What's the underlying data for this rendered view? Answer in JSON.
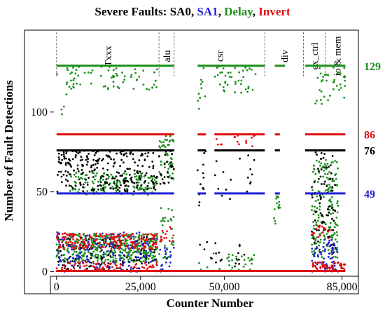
{
  "chart_data": {
    "type": "scatter",
    "title_parts": [
      {
        "text": "Severe Faults: ",
        "color": "#000000"
      },
      {
        "text": "SA0",
        "color": "#000000"
      },
      {
        "text": ", ",
        "color": "#000000"
      },
      {
        "text": "SA1",
        "color": "#1f1fd6"
      },
      {
        "text": ", ",
        "color": "#000000"
      },
      {
        "text": "Delay",
        "color": "#1a8f1a"
      },
      {
        "text": ", ",
        "color": "#000000"
      },
      {
        "text": "Invert",
        "color": "#e01010"
      }
    ],
    "xlabel": "Counter Number",
    "ylabel": "Number of Fault Detections",
    "xlim": [
      -1000,
      88000
    ],
    "ylim": [
      -2,
      150
    ],
    "xticks": [
      {
        "value": 0,
        "label": "0"
      },
      {
        "value": 25000,
        "label": "25,000"
      },
      {
        "value": 50000,
        "label": "50,000"
      },
      {
        "value": 85000,
        "label": "85,000"
      }
    ],
    "yticks": [
      {
        "value": 0,
        "label": "0"
      },
      {
        "value": 50,
        "label": "50"
      },
      {
        "value": 100,
        "label": "100"
      }
    ],
    "series": [
      {
        "name": "SA0",
        "color": "#000000",
        "level": 76
      },
      {
        "name": "SA1",
        "color": "#1f1fd6",
        "level": 49
      },
      {
        "name": "Delay",
        "color": "#1a8f1a",
        "level": 129
      },
      {
        "name": "Invert",
        "color": "#e01010",
        "level": 86
      }
    ],
    "level_labels": [
      {
        "text": "129",
        "value": 129,
        "color": "#1a8f1a"
      },
      {
        "text": "86",
        "value": 86,
        "color": "#e01010"
      },
      {
        "text": "76",
        "value": 76,
        "color": "#000000"
      },
      {
        "text": "49",
        "value": 49,
        "color": "#1f1fd6"
      }
    ],
    "regions": [
      {
        "label": "Txxx",
        "start": 0,
        "end": 30500
      },
      {
        "label": "alu",
        "start": 30500,
        "end": 35000
      },
      {
        "label": "csr",
        "start": 35000,
        "end": 62000
      },
      {
        "label": "div",
        "start": 62000,
        "end": 73500
      },
      {
        "label": "ex_ctrl",
        "start": 73500,
        "end": 80000
      },
      {
        "label": "io & mem",
        "start": 80000,
        "end": 87000
      }
    ],
    "bands": [
      {
        "series": "Delay",
        "value": 129,
        "ranges": [
          [
            0,
            35000
          ],
          [
            42000,
            62000
          ],
          [
            65000,
            68000
          ],
          [
            74000,
            86000
          ]
        ]
      },
      {
        "series": "Invert",
        "value": 86,
        "ranges": [
          [
            0,
            35000
          ],
          [
            42000,
            44500
          ],
          [
            47000,
            62000
          ],
          [
            65000,
            66500
          ],
          [
            74000,
            86000
          ]
        ]
      },
      {
        "series": "SA0",
        "value": 76,
        "ranges": [
          [
            0,
            35000
          ],
          [
            42000,
            44500
          ],
          [
            47000,
            62000
          ],
          [
            65000,
            66500
          ],
          [
            74000,
            86000
          ]
        ]
      },
      {
        "series": "SA1",
        "value": 49,
        "ranges": [
          [
            0,
            35000
          ],
          [
            42000,
            44500
          ],
          [
            47000,
            62000
          ],
          [
            65000,
            66500
          ],
          [
            74000,
            86000
          ]
        ]
      }
    ],
    "clusters": [
      {
        "series": "Delay",
        "xr": [
          3000,
          30000
        ],
        "yr": [
          114,
          129
        ],
        "n": 70
      },
      {
        "series": "Delay",
        "xr": [
          42000,
          44500
        ],
        "yr": [
          100,
          129
        ],
        "n": 10
      },
      {
        "series": "Delay",
        "xr": [
          47000,
          60000
        ],
        "yr": [
          112,
          129
        ],
        "n": 40
      },
      {
        "series": "Delay",
        "xr": [
          77000,
          86000
        ],
        "yr": [
          105,
          129
        ],
        "n": 40
      },
      {
        "series": "Delay",
        "xr": [
          3000,
          30000
        ],
        "yr": [
          48,
          62
        ],
        "n": 160
      },
      {
        "series": "Delay",
        "xr": [
          30500,
          35000
        ],
        "yr": [
          58,
          86
        ],
        "n": 50
      },
      {
        "series": "Delay",
        "xr": [
          76000,
          84000
        ],
        "yr": [
          8,
          70
        ],
        "n": 170
      },
      {
        "series": "Delay",
        "xr": [
          0,
          30000
        ],
        "yr": [
          6,
          24
        ],
        "n": 420
      },
      {
        "series": "Delay",
        "xr": [
          30500,
          35000
        ],
        "yr": [
          8,
          40
        ],
        "n": 30
      },
      {
        "series": "Delay",
        "xr": [
          42000,
          60000
        ],
        "yr": [
          0,
          12
        ],
        "n": 30
      },
      {
        "series": "Delay",
        "xr": [
          64500,
          66500
        ],
        "yr": [
          30,
          48
        ],
        "n": 15
      },
      {
        "series": "Delay",
        "xr": [
          0,
          3000
        ],
        "yr": [
          95,
          130
        ],
        "n": 5
      },
      {
        "series": "SA0",
        "xr": [
          0,
          30000
        ],
        "yr": [
          50,
          76
        ],
        "n": 260
      },
      {
        "series": "SA0",
        "xr": [
          30500,
          35000
        ],
        "yr": [
          55,
          76
        ],
        "n": 25
      },
      {
        "series": "SA0",
        "xr": [
          42000,
          44500
        ],
        "yr": [
          40,
          76
        ],
        "n": 12
      },
      {
        "series": "SA0",
        "xr": [
          47000,
          60000
        ],
        "yr": [
          40,
          76
        ],
        "n": 18
      },
      {
        "series": "SA0",
        "xr": [
          76000,
          83000
        ],
        "yr": [
          10,
          76
        ],
        "n": 80
      },
      {
        "series": "SA0",
        "xr": [
          0,
          30000
        ],
        "yr": [
          0,
          22
        ],
        "n": 120
      },
      {
        "series": "SA0",
        "xr": [
          42000,
          58000
        ],
        "yr": [
          0,
          20
        ],
        "n": 20
      },
      {
        "series": "SA1",
        "xr": [
          0,
          30000
        ],
        "yr": [
          0,
          25
        ],
        "n": 170
      },
      {
        "series": "SA1",
        "xr": [
          76000,
          84000
        ],
        "yr": [
          0,
          20
        ],
        "n": 60
      },
      {
        "series": "SA1",
        "xr": [
          30500,
          35000
        ],
        "yr": [
          0,
          15
        ],
        "n": 20
      },
      {
        "series": "Invert",
        "xr": [
          0,
          30000
        ],
        "yr": [
          14,
          24
        ],
        "n": 200
      },
      {
        "series": "Invert",
        "xr": [
          30500,
          35000
        ],
        "yr": [
          18,
          28
        ],
        "n": 15
      },
      {
        "series": "Invert",
        "xr": [
          0,
          30000
        ],
        "yr": [
          0,
          6
        ],
        "n": 80
      },
      {
        "series": "Invert",
        "xr": [
          76000,
          86000
        ],
        "yr": [
          0,
          6
        ],
        "n": 60
      },
      {
        "series": "Invert",
        "xr": [
          47000,
          60000
        ],
        "yr": [
          78,
          86
        ],
        "n": 15
      },
      {
        "series": "Invert",
        "xr": [
          76000,
          82000
        ],
        "yr": [
          20,
          30
        ],
        "n": 20
      }
    ],
    "baseline": {
      "series": "Invert",
      "value": 0,
      "range": [
        0,
        86000
      ]
    }
  }
}
